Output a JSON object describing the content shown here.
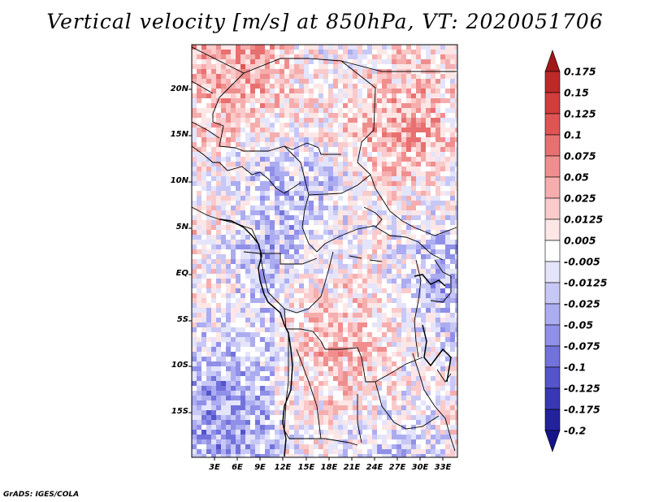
{
  "title": "Vertical velocity [m/s] at 850hPa, VT: 2020051706",
  "credit": "GrADS: IGES/COLA",
  "map": {
    "variable": "Vertical velocity",
    "units": "m/s",
    "level": "850hPa",
    "valid_time": "2020051706",
    "lat_labels": [
      "20N",
      "15N",
      "10N",
      "5N",
      "EQ",
      "5S",
      "10S",
      "15S"
    ],
    "lon_labels": [
      "3E",
      "6E",
      "9E",
      "12E",
      "15E",
      "18E",
      "21E",
      "24E",
      "27E",
      "30E",
      "33E"
    ]
  },
  "colorbar": {
    "levels": [
      "0.175",
      "0.15",
      "0.125",
      "0.1",
      "0.075",
      "0.05",
      "0.025",
      "0.0125",
      "0.005",
      "-0.005",
      "-0.0125",
      "-0.025",
      "-0.05",
      "-0.075",
      "-0.1",
      "-0.125",
      "-0.175",
      "-0.2"
    ],
    "colors": [
      "#a01818",
      "#be2828",
      "#d23c3c",
      "#e05454",
      "#e87070",
      "#f08e8e",
      "#f6adad",
      "#fbcaca",
      "#fde6e6",
      "#ffffff",
      "#e4e4fb",
      "#c8c8f6",
      "#acacf0",
      "#9090e8",
      "#7272dc",
      "#5454cc",
      "#3838b6",
      "#22229c",
      "#14148a"
    ]
  }
}
